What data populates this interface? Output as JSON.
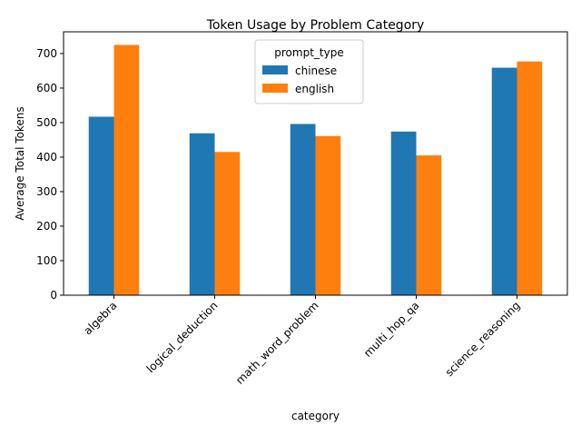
{
  "chart_data": {
    "type": "bar",
    "title": "Token Usage by Problem Category",
    "xlabel": "category",
    "ylabel": "Average Total Tokens",
    "categories": [
      "algebra",
      "logical_deduction",
      "math_word_problem",
      "multi_hop_qa",
      "science_reasoning"
    ],
    "series": [
      {
        "name": "chinese",
        "color": "#1f77b4",
        "values": [
          517,
          469,
          496,
          474,
          659
        ]
      },
      {
        "name": "english",
        "color": "#ff7f0e",
        "values": [
          725,
          415,
          461,
          405,
          677
        ]
      }
    ],
    "ylim": [
      0,
      763
    ],
    "yticks": [
      0,
      100,
      200,
      300,
      400,
      500,
      600,
      700
    ],
    "grid": false,
    "legend": {
      "title": "prompt_type",
      "placement": "top-center"
    }
  }
}
